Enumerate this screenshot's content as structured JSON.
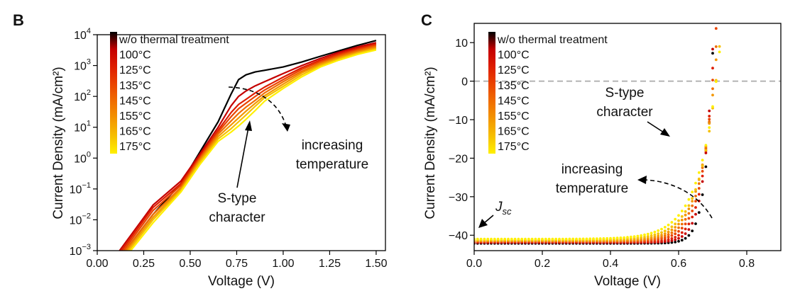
{
  "figure": {
    "panel_left": "B",
    "panel_right": "C"
  },
  "colors": {
    "series": [
      "#000000",
      "#c40000",
      "#de1d00",
      "#ea4400",
      "#f06d00",
      "#f39600",
      "#f6c000",
      "#fff000"
    ],
    "axis": "#000000",
    "zero_line": "#aaaaaa"
  },
  "chart_data": [
    {
      "type": "line",
      "panel": "B",
      "xlabel": "Voltage (V)",
      "ylabel": "Current Density (mA/cm²)",
      "yscale": "log",
      "xlim": [
        0.0,
        1.55
      ],
      "ylim_exp": [
        -3,
        4
      ],
      "x_ticks": [
        {
          "v": 0.0,
          "label": "0.00"
        },
        {
          "v": 0.25,
          "label": "0.25"
        },
        {
          "v": 0.5,
          "label": "0.50"
        },
        {
          "v": 0.75,
          "label": "0.75"
        },
        {
          "v": 1.0,
          "label": "1.00"
        },
        {
          "v": 1.25,
          "label": "1.25"
        },
        {
          "v": 1.5,
          "label": "1.50"
        }
      ],
      "y_ticks": [
        {
          "e": -3,
          "base": "10",
          "exp": "−3"
        },
        {
          "e": -2,
          "base": "10",
          "exp": "−2"
        },
        {
          "e": -1,
          "base": "10",
          "exp": "−1"
        },
        {
          "e": 0,
          "base": "10",
          "exp": "0"
        },
        {
          "e": 1,
          "base": "10",
          "exp": "1"
        },
        {
          "e": 2,
          "base": "10",
          "exp": "2"
        },
        {
          "e": 3,
          "base": "10",
          "exp": "3"
        },
        {
          "e": 4,
          "base": "10",
          "exp": "4"
        }
      ],
      "series": [
        {
          "name": "w/o thermal treatment",
          "x": [
            0.15,
            0.3,
            0.45,
            0.55,
            0.65,
            0.72,
            0.76,
            0.8,
            0.85,
            0.9,
            1.0,
            1.1,
            1.2,
            1.3,
            1.4,
            1.5
          ],
          "y": [
            0.001,
            0.015,
            0.15,
            1.5,
            15,
            120,
            350,
            500,
            620,
            700,
            900,
            1300,
            2000,
            3000,
            4500,
            6500
          ]
        },
        {
          "name": "100°C",
          "x": [
            0.12,
            0.3,
            0.45,
            0.55,
            0.65,
            0.72,
            0.76,
            0.8,
            0.85,
            0.9,
            1.0,
            1.1,
            1.2,
            1.3,
            1.4,
            1.5
          ],
          "y": [
            0.001,
            0.03,
            0.18,
            1.3,
            10,
            50,
            100,
            150,
            220,
            300,
            550,
            1000,
            1700,
            2700,
            4000,
            5500
          ]
        },
        {
          "name": "125°C",
          "x": [
            0.13,
            0.3,
            0.45,
            0.55,
            0.65,
            0.72,
            0.76,
            0.8,
            0.85,
            0.9,
            1.0,
            1.1,
            1.2,
            1.3,
            1.4,
            1.5
          ],
          "y": [
            0.001,
            0.025,
            0.15,
            1.1,
            8,
            30,
            55,
            80,
            130,
            200,
            420,
            850,
            1500,
            2400,
            3600,
            5000
          ]
        },
        {
          "name": "135°C",
          "x": [
            0.14,
            0.3,
            0.45,
            0.55,
            0.65,
            0.72,
            0.76,
            0.8,
            0.85,
            0.9,
            1.0,
            1.1,
            1.2,
            1.3,
            1.4,
            1.5
          ],
          "y": [
            0.001,
            0.02,
            0.13,
            1.0,
            7,
            22,
            40,
            60,
            100,
            160,
            350,
            750,
            1350,
            2200,
            3300,
            4600
          ]
        },
        {
          "name": "145°C",
          "x": [
            0.15,
            0.3,
            0.45,
            0.55,
            0.65,
            0.72,
            0.76,
            0.8,
            0.85,
            0.9,
            1.0,
            1.1,
            1.2,
            1.3,
            1.4,
            1.5
          ],
          "y": [
            0.001,
            0.015,
            0.11,
            0.9,
            6,
            16,
            28,
            45,
            75,
            130,
            300,
            650,
            1200,
            2000,
            3000,
            4200
          ]
        },
        {
          "name": "155°C",
          "x": [
            0.16,
            0.3,
            0.45,
            0.55,
            0.65,
            0.72,
            0.76,
            0.8,
            0.85,
            0.9,
            1.0,
            1.1,
            1.2,
            1.3,
            1.4,
            1.5
          ],
          "y": [
            0.001,
            0.012,
            0.1,
            0.8,
            5,
            12,
            20,
            33,
            60,
            105,
            250,
            580,
            1100,
            1800,
            2700,
            3800
          ]
        },
        {
          "name": "165°C",
          "x": [
            0.17,
            0.3,
            0.45,
            0.55,
            0.65,
            0.72,
            0.76,
            0.8,
            0.85,
            0.9,
            1.0,
            1.1,
            1.2,
            1.3,
            1.4,
            1.5
          ],
          "y": [
            0.001,
            0.01,
            0.09,
            0.7,
            4.2,
            9,
            15,
            25,
            48,
            90,
            210,
            500,
            1000,
            1650,
            2500,
            3500
          ]
        },
        {
          "name": "175°C",
          "x": [
            0.18,
            0.3,
            0.45,
            0.55,
            0.65,
            0.72,
            0.76,
            0.8,
            0.85,
            0.9,
            1.0,
            1.1,
            1.2,
            1.3,
            1.4,
            1.5
          ],
          "y": [
            0.001,
            0.008,
            0.08,
            0.6,
            3.5,
            7,
            11,
            18,
            35,
            70,
            180,
            430,
            900,
            1500,
            2300,
            3200
          ]
        }
      ],
      "annotations": {
        "s_type": [
          "S-type",
          "character"
        ],
        "increasing": [
          "increasing",
          "temperature"
        ]
      }
    },
    {
      "type": "scatter",
      "panel": "C",
      "xlabel": "Voltage (V)",
      "ylabel": "Current Density (mA/cm²)",
      "xlim": [
        0.0,
        0.9
      ],
      "ylim": [
        -44,
        15
      ],
      "x_ticks": [
        {
          "v": 0.0,
          "label": "0.0"
        },
        {
          "v": 0.2,
          "label": "0.2"
        },
        {
          "v": 0.4,
          "label": "0.4"
        },
        {
          "v": 0.6,
          "label": "0.6"
        },
        {
          "v": 0.8,
          "label": "0.8"
        }
      ],
      "y_ticks": [
        {
          "v": -40,
          "label": "−40"
        },
        {
          "v": -30,
          "label": "−30"
        },
        {
          "v": -20,
          "label": "−20"
        },
        {
          "v": -10,
          "label": "−10"
        },
        {
          "v": 0,
          "label": "0"
        },
        {
          "v": 10,
          "label": "10"
        }
      ],
      "curve_params": {
        "description": "J(V) = Jsc + a*(exp((V - Vb)/s) - 1), sampled every 0.01 V",
        "series": [
          {
            "name": "w/o thermal treatment",
            "jsc": -40.8,
            "vb": 0.62,
            "s": 0.022,
            "a": 1.3
          },
          {
            "name": "100°C",
            "jsc": -40.6,
            "vb": 0.605,
            "s": 0.026,
            "a": 1.3
          },
          {
            "name": "125°C",
            "jsc": -40.5,
            "vb": 0.59,
            "s": 0.031,
            "a": 1.3
          },
          {
            "name": "135°C",
            "jsc": -40.3,
            "vb": 0.575,
            "s": 0.036,
            "a": 1.3
          },
          {
            "name": "145°C",
            "jsc": -40.2,
            "vb": 0.56,
            "s": 0.041,
            "a": 1.3
          },
          {
            "name": "155°C",
            "jsc": -40.1,
            "vb": 0.545,
            "s": 0.046,
            "a": 1.3
          },
          {
            "name": "165°C",
            "jsc": -39.9,
            "vb": 0.53,
            "s": 0.052,
            "a": 1.3
          },
          {
            "name": "175°C",
            "jsc": -39.7,
            "vb": 0.51,
            "s": 0.058,
            "a": 1.3
          }
        ]
      },
      "zero_line": 0,
      "annotations": {
        "s_type": [
          "S-type",
          "character"
        ],
        "increasing": [
          "increasing",
          "temperature"
        ],
        "jsc_base": "J",
        "jsc_sub": "sc"
      }
    }
  ]
}
